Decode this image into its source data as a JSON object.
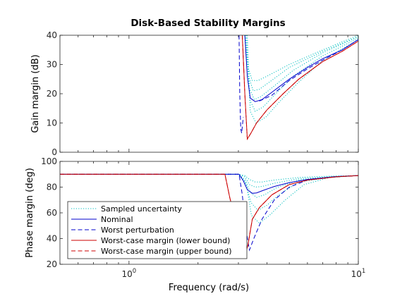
{
  "chart_data": [
    {
      "type": "line",
      "title": "Disk-Based Stability Margins",
      "xlabel": "",
      "ylabel": "Gain margin (dB)",
      "xscale": "log",
      "xlim": [
        0.5,
        10
      ],
      "ylim": [
        0,
        40
      ],
      "yticks": [
        0,
        10,
        20,
        30,
        40
      ],
      "grid": false,
      "series": [
        {
          "name": "Sampled uncertainty",
          "color": "#00bfbf",
          "style": "dotted",
          "curves": [
            {
              "x": [
                3.2,
                3.3,
                3.45,
                3.65,
                4.0,
                5.0,
                7.0,
                10.0
              ],
              "y": [
                40,
                29,
                24.5,
                24.5,
                26,
                30,
                35,
                40
              ]
            },
            {
              "x": [
                3.2,
                3.32,
                3.48,
                3.7,
                4.1,
                5.0,
                7.0,
                10.0
              ],
              "y": [
                40,
                26,
                21,
                21.5,
                24,
                29,
                34.5,
                39.5
              ]
            },
            {
              "x": [
                3.22,
                3.34,
                3.52,
                3.75,
                4.2,
                5.2,
                7.0,
                10.0
              ],
              "y": [
                40,
                22,
                18,
                19,
                22,
                28,
                34,
                39.5
              ]
            },
            {
              "x": [
                3.25,
                3.36,
                3.55,
                3.85,
                4.3,
                5.2,
                7.0,
                10.0
              ],
              "y": [
                40,
                18,
                14,
                15.5,
                19.5,
                26,
                33,
                39
              ]
            },
            {
              "x": [
                3.28,
                3.38,
                3.58,
                3.95,
                4.5,
                5.5,
                7.0,
                10.0
              ],
              "y": [
                40,
                14,
                10,
                12,
                17,
                24,
                31.5,
                38.5
              ]
            }
          ]
        },
        {
          "name": "Nominal",
          "color": "#0000cc",
          "style": "solid",
          "x": [
            3.2,
            3.28,
            3.38,
            3.55,
            3.8,
            4.2,
            5.0,
            6.0,
            7.0,
            8.5,
            10.0
          ],
          "y": [
            40,
            26,
            18.5,
            17.3,
            18,
            20.5,
            25,
            29,
            32,
            35,
            38.5
          ]
        },
        {
          "name": "Worst perturbation",
          "color": "#0000cc",
          "style": "dashed",
          "curves": [
            {
              "x": [
                3.02,
                3.04,
                3.07,
                3.1,
                3.15
              ],
              "y": [
                40,
                20,
                8,
                6.5,
                12
              ]
            },
            {
              "x": [
                3.7,
                4.2,
                5.0,
                6.0,
                7.0,
                8.5,
                10.0
              ],
              "y": [
                17.5,
                19.5,
                24.5,
                28.5,
                31.5,
                35,
                38.5
              ]
            }
          ]
        },
        {
          "name": "Worst-case margin (lower bound)",
          "color": "#cc0000",
          "style": "solid",
          "x": [
            3.12,
            3.2,
            3.28,
            3.4,
            3.6,
            4.0,
            4.7,
            5.5,
            7.0,
            8.5,
            10.0
          ],
          "y": [
            40,
            20,
            4.5,
            6.5,
            10,
            14.5,
            20,
            25,
            31,
            34.5,
            38
          ]
        },
        {
          "name": "Worst-case margin (upper bound)",
          "color": "#cc0000",
          "style": "dashed",
          "x": [
            3.12,
            3.2,
            3.28,
            3.4,
            3.6,
            4.0,
            4.7,
            5.5,
            7.0,
            8.5,
            10.0
          ],
          "y": [
            40,
            20,
            4.5,
            6.5,
            10,
            14.5,
            20,
            25,
            31,
            34.5,
            38
          ]
        }
      ]
    },
    {
      "type": "line",
      "title": "",
      "xlabel": "Frequency (rad/s)",
      "ylabel": "Phase margin (deg)",
      "xscale": "log",
      "xlim": [
        0.5,
        10
      ],
      "ylim": [
        20,
        100
      ],
      "yticks": [
        20,
        40,
        60,
        80,
        100
      ],
      "xticks": [
        {
          "value": 1,
          "base": "10",
          "exp": "0"
        },
        {
          "value": 10,
          "base": "10",
          "exp": "1"
        }
      ],
      "grid": false,
      "legend": {
        "position": "bottom-left",
        "entries": [
          {
            "label": "Sampled uncertainty",
            "color": "#00bfbf",
            "style": "dotted"
          },
          {
            "label": "Nominal",
            "color": "#0000cc",
            "style": "solid"
          },
          {
            "label": "Worst perturbation",
            "color": "#0000cc",
            "style": "dashed"
          },
          {
            "label": "Worst-case margin (lower bound)",
            "color": "#cc0000",
            "style": "solid"
          },
          {
            "label": "Worst-case margin (upper bound)",
            "color": "#cc0000",
            "style": "dashed"
          }
        ]
      },
      "series": [
        {
          "name": "Sampled uncertainty",
          "color": "#00bfbf",
          "style": "dotted",
          "curves": [
            {
              "x": [
                0.5,
                3.0,
                3.2,
                3.35,
                3.55,
                3.8,
                4.3,
                5.5,
                7.5,
                10.0
              ],
              "y": [
                90,
                90,
                89,
                86,
                84,
                84,
                85.5,
                87.5,
                88.5,
                89
              ]
            },
            {
              "x": [
                0.5,
                3.0,
                3.2,
                3.35,
                3.55,
                3.8,
                4.3,
                5.5,
                7.5,
                10.0
              ],
              "y": [
                90,
                90,
                88,
                82,
                80,
                80.5,
                83,
                86.5,
                88,
                89
              ]
            },
            {
              "x": [
                0.5,
                3.0,
                3.2,
                3.38,
                3.6,
                3.9,
                4.4,
                5.5,
                7.5,
                10.0
              ],
              "y": [
                90,
                90,
                86,
                76,
                72,
                74,
                79.5,
                85.5,
                88,
                89
              ]
            },
            {
              "x": [
                0.5,
                3.0,
                3.22,
                3.4,
                3.65,
                4.0,
                4.5,
                5.5,
                7.5,
                10.0
              ],
              "y": [
                90,
                90,
                84,
                68,
                62,
                66,
                74,
                84,
                87.5,
                89
              ]
            },
            {
              "x": [
                0.5,
                3.0,
                3.25,
                3.42,
                3.7,
                4.1,
                4.8,
                5.8,
                7.5,
                10.0
              ],
              "y": [
                90,
                90,
                82,
                58,
                52,
                58,
                70,
                82,
                87.5,
                89
              ]
            }
          ]
        },
        {
          "name": "Nominal",
          "color": "#0000cc",
          "style": "solid",
          "x": [
            0.5,
            3.02,
            3.15,
            3.28,
            3.45,
            3.6,
            3.85,
            4.3,
            5.0,
            6.0,
            8.0,
            10.0
          ],
          "y": [
            90,
            90,
            85,
            78,
            75.2,
            75.5,
            77.5,
            80.5,
            83.5,
            86,
            88.2,
            89
          ]
        },
        {
          "name": "Worst perturbation",
          "color": "#0000cc",
          "style": "dashed",
          "x": [
            0.5,
            3.02,
            3.12,
            3.25,
            3.35,
            3.5,
            3.8,
            4.3,
            5.0,
            6.0,
            8.0,
            10.0
          ],
          "y": [
            90,
            90,
            74,
            45,
            31,
            40,
            55,
            70,
            80,
            85.5,
            88,
            89
          ]
        },
        {
          "name": "Worst-case margin (lower bound)",
          "color": "#cc0000",
          "style": "solid",
          "x": [
            0.5,
            2.62,
            2.75,
            3.0,
            3.22,
            3.3,
            3.45,
            3.7,
            4.2,
            5.0,
            6.0,
            8.0,
            10.0
          ],
          "y": [
            90,
            90,
            72,
            45,
            28,
            35,
            55,
            64,
            74,
            82,
            85.5,
            88,
            89
          ]
        },
        {
          "name": "Worst-case margin (upper bound)",
          "color": "#cc0000",
          "style": "dashed",
          "x": [
            0.5,
            2.62,
            2.75,
            3.0,
            3.22,
            3.3,
            3.45,
            3.7,
            4.2,
            5.0,
            6.0,
            8.0,
            10.0
          ],
          "y": [
            90,
            90,
            72,
            45,
            28,
            35,
            55,
            64,
            74,
            82,
            85.5,
            88,
            89
          ]
        }
      ]
    }
  ]
}
